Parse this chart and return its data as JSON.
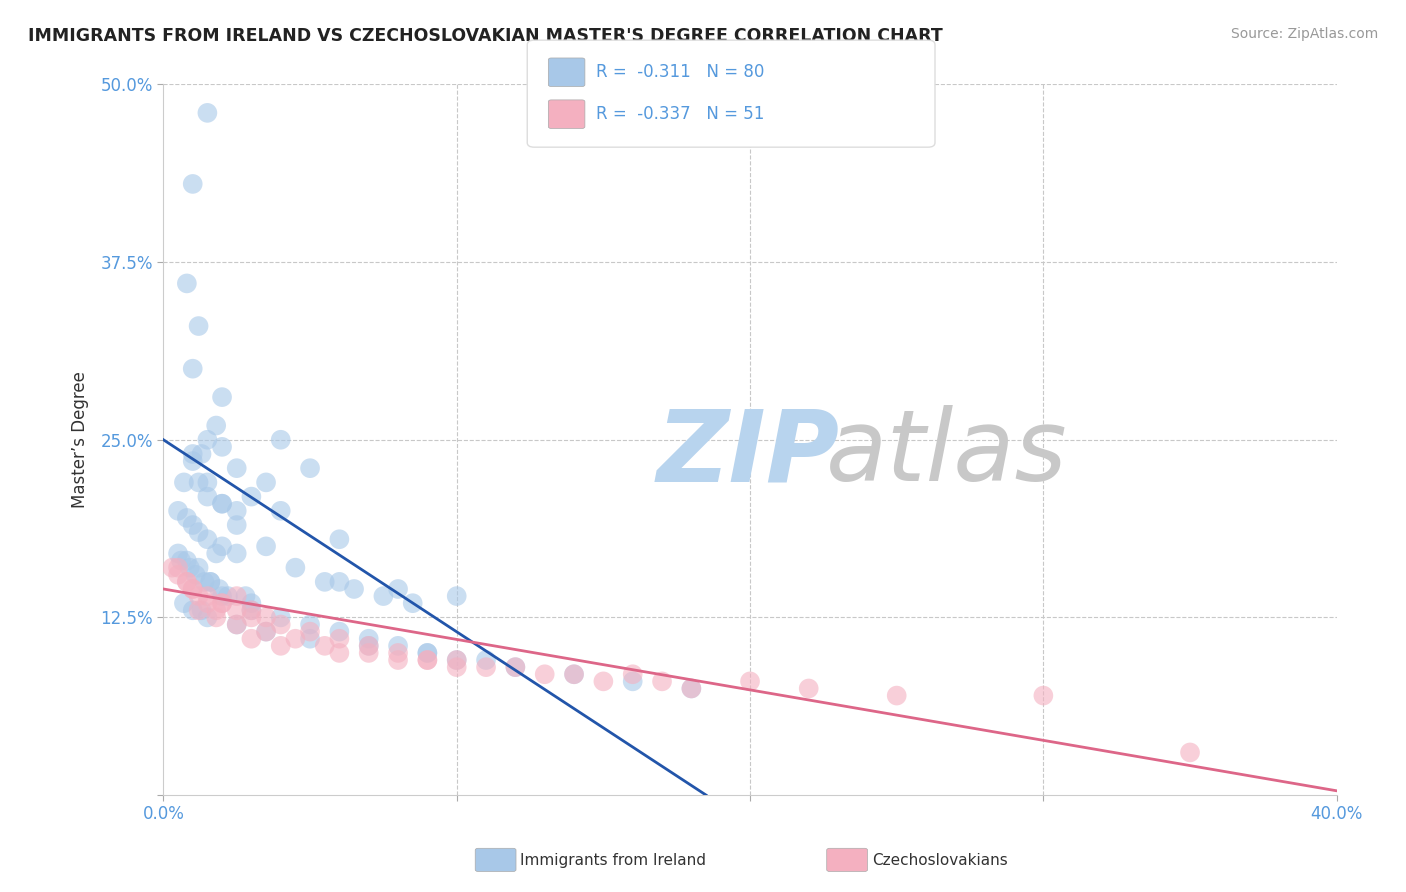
{
  "title": "IMMIGRANTS FROM IRELAND VS CZECHOSLOVAKIAN MASTER'S DEGREE CORRELATION CHART",
  "source_text": "Source: ZipAtlas.com",
  "ylabel": "Master’s Degree",
  "legend_R": [
    -0.311,
    -0.337
  ],
  "legend_N": [
    80,
    51
  ],
  "blue_color": "#a8c8e8",
  "pink_color": "#f4b0c0",
  "blue_line_color": "#2255aa",
  "pink_line_color": "#dd6688",
  "xlim": [
    0,
    40
  ],
  "ylim": [
    0,
    50
  ],
  "xticks": [
    0,
    10,
    20,
    30,
    40
  ],
  "xticklabels": [
    "0.0%",
    "",
    "",
    "",
    "40.0%"
  ],
  "yticks": [
    0,
    12.5,
    25,
    37.5,
    50
  ],
  "yticklabels": [
    "",
    "12.5%",
    "25.0%",
    "37.5%",
    "50.0%"
  ],
  "blue_scatter_x": [
    1.5,
    1.0,
    0.8,
    1.2,
    1.0,
    2.0,
    1.8,
    1.5,
    1.3,
    1.0,
    0.7,
    1.2,
    1.5,
    2.0,
    2.5,
    0.5,
    0.8,
    1.0,
    1.2,
    1.5,
    2.0,
    2.5,
    1.8,
    0.6,
    0.9,
    1.1,
    1.4,
    1.6,
    1.9,
    2.2,
    2.8,
    3.0,
    1.0,
    1.5,
    2.0,
    2.5,
    3.5,
    4.5,
    5.5,
    6.5,
    7.5,
    8.5,
    4.0,
    5.0,
    3.5,
    2.0,
    2.5,
    3.0,
    4.0,
    6.0,
    0.5,
    0.8,
    1.2,
    1.6,
    2.0,
    3.0,
    4.0,
    5.0,
    6.0,
    7.0,
    8.0,
    9.0,
    10.0,
    12.0,
    14.0,
    16.0,
    18.0,
    1.0,
    1.5,
    2.5,
    3.5,
    5.0,
    7.0,
    9.0,
    11.0,
    6.0,
    8.0,
    10.0,
    0.7,
    1.3
  ],
  "blue_scatter_y": [
    48.0,
    43.0,
    36.0,
    33.0,
    30.0,
    28.0,
    26.0,
    25.0,
    24.0,
    23.5,
    22.0,
    22.0,
    21.0,
    20.5,
    20.0,
    20.0,
    19.5,
    19.0,
    18.5,
    18.0,
    17.5,
    17.0,
    17.0,
    16.5,
    16.0,
    15.5,
    15.0,
    15.0,
    14.5,
    14.0,
    14.0,
    13.5,
    24.0,
    22.0,
    20.5,
    19.0,
    17.5,
    16.0,
    15.0,
    14.5,
    14.0,
    13.5,
    25.0,
    23.0,
    22.0,
    24.5,
    23.0,
    21.0,
    20.0,
    18.0,
    17.0,
    16.5,
    16.0,
    15.0,
    14.0,
    13.0,
    12.5,
    12.0,
    11.5,
    11.0,
    10.5,
    10.0,
    9.5,
    9.0,
    8.5,
    8.0,
    7.5,
    13.0,
    12.5,
    12.0,
    11.5,
    11.0,
    10.5,
    10.0,
    9.5,
    15.0,
    14.5,
    14.0,
    13.5,
    13.0
  ],
  "pink_scatter_x": [
    0.3,
    0.5,
    0.8,
    1.0,
    1.2,
    1.5,
    1.8,
    2.0,
    2.5,
    3.0,
    3.5,
    0.5,
    0.8,
    1.0,
    1.5,
    2.0,
    2.5,
    3.0,
    4.0,
    5.0,
    6.0,
    7.0,
    8.0,
    9.0,
    10.0,
    12.0,
    14.0,
    15.0,
    16.0,
    17.0,
    18.0,
    20.0,
    22.0,
    25.0,
    30.0,
    35.0,
    1.2,
    1.8,
    2.5,
    3.5,
    4.5,
    5.5,
    7.0,
    9.0,
    11.0,
    13.0,
    3.0,
    4.0,
    6.0,
    8.0,
    10.0
  ],
  "pink_scatter_y": [
    16.0,
    15.5,
    15.0,
    14.5,
    14.0,
    13.5,
    13.0,
    13.5,
    14.0,
    13.0,
    12.5,
    16.0,
    15.0,
    14.5,
    14.0,
    13.5,
    13.0,
    12.5,
    12.0,
    11.5,
    11.0,
    10.5,
    10.0,
    9.5,
    9.5,
    9.0,
    8.5,
    8.0,
    8.5,
    8.0,
    7.5,
    8.0,
    7.5,
    7.0,
    7.0,
    3.0,
    13.0,
    12.5,
    12.0,
    11.5,
    11.0,
    10.5,
    10.0,
    9.5,
    9.0,
    8.5,
    11.0,
    10.5,
    10.0,
    9.5,
    9.0
  ],
  "blue_line_x": [
    0.0,
    18.5
  ],
  "blue_line_y": [
    25.0,
    0.0
  ],
  "pink_line_x": [
    0.0,
    40.0
  ],
  "pink_line_y": [
    14.5,
    0.3
  ],
  "background_color": "#ffffff",
  "grid_color": "#c8c8c8",
  "title_color": "#222222",
  "axis_color": "#5599dd",
  "tick_color": "#5599dd",
  "source_color": "#999999",
  "legend_text_color": "#333333",
  "legend_num_color": "#5599dd",
  "watermark_zip_color": "#b8d4ee",
  "watermark_atlas_color": "#c8c8c8"
}
